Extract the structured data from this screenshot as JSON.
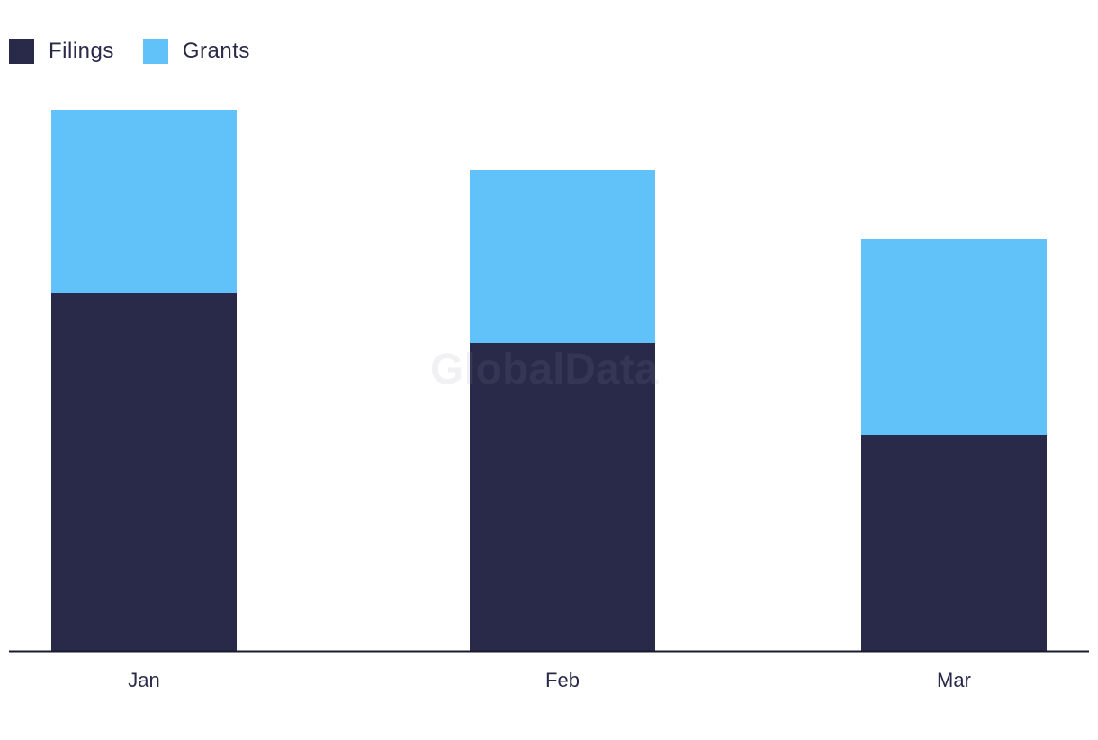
{
  "chart_data": {
    "type": "bar",
    "stacked": true,
    "categories": [
      "Jan",
      "Feb",
      "Mar"
    ],
    "series": [
      {
        "name": "Filings",
        "values": [
          397,
          342,
          240
        ],
        "color": "#29294a"
      },
      {
        "name": "Grants",
        "values": [
          204,
          192,
          217
        ],
        "color": "#61c1f9"
      }
    ],
    "ylim": [
      0,
      600
    ],
    "grid": false,
    "legend_position": "top-left"
  },
  "legend": {
    "filings_label": "Filings",
    "grants_label": "Grants",
    "filings_color": "#29294a",
    "grants_color": "#61c1f9"
  },
  "watermark": "GlobalData"
}
